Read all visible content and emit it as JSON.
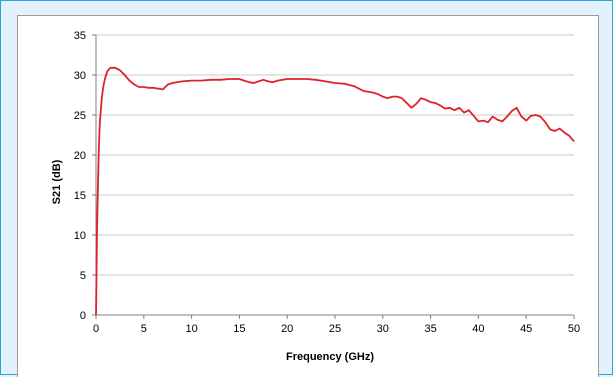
{
  "chart_data": {
    "type": "line",
    "title": "",
    "xlabel": "Frequency (GHz)",
    "ylabel": "S21 (dB)",
    "xlim": [
      0,
      50
    ],
    "ylim": [
      0,
      35
    ],
    "x_ticks": [
      0,
      5,
      10,
      15,
      20,
      25,
      30,
      35,
      40,
      45,
      50
    ],
    "y_ticks": [
      0,
      5,
      10,
      15,
      20,
      25,
      30,
      35
    ],
    "grid": "horizontal",
    "legend": "none",
    "series": [
      {
        "color": "#e0202a",
        "x": [
          0,
          0.1,
          0.2,
          0.3,
          0.4,
          0.5,
          0.6,
          0.7,
          0.8,
          1.0,
          1.2,
          1.5,
          2.0,
          2.5,
          3.0,
          3.5,
          4.0,
          4.5,
          5.0,
          5.5,
          6.0,
          6.5,
          7.0,
          7.5,
          8.0,
          9.0,
          10.0,
          11.0,
          12.0,
          13.0,
          14.0,
          15.0,
          15.5,
          16.0,
          16.5,
          17.0,
          17.5,
          18.0,
          18.5,
          19.0,
          20.0,
          21.0,
          22.0,
          23.0,
          24.0,
          25.0,
          26.0,
          27.0,
          28.0,
          29.0,
          29.5,
          30.0,
          30.5,
          31.0,
          31.5,
          32.0,
          32.5,
          33.0,
          33.5,
          34.0,
          34.5,
          35.0,
          35.5,
          36.0,
          36.5,
          37.0,
          37.5,
          38.0,
          38.5,
          39.0,
          39.5,
          40.0,
          40.5,
          41.0,
          41.5,
          42.0,
          42.5,
          43.0,
          43.5,
          44.0,
          44.5,
          45.0,
          45.5,
          46.0,
          46.5,
          47.0,
          47.5,
          48.0,
          48.5,
          49.0,
          49.5,
          50.0
        ],
        "values": [
          0,
          10,
          16,
          21,
          24,
          25.5,
          27,
          28,
          28.8,
          29.8,
          30.5,
          30.9,
          30.9,
          30.6,
          30.0,
          29.3,
          28.8,
          28.5,
          28.5,
          28.4,
          28.4,
          28.3,
          28.2,
          28.8,
          29.0,
          29.2,
          29.3,
          29.3,
          29.4,
          29.4,
          29.5,
          29.5,
          29.3,
          29.1,
          29.0,
          29.2,
          29.4,
          29.2,
          29.1,
          29.3,
          29.5,
          29.5,
          29.5,
          29.4,
          29.2,
          29.0,
          28.9,
          28.6,
          28.0,
          27.8,
          27.6,
          27.3,
          27.1,
          27.3,
          27.3,
          27.1,
          26.5,
          25.9,
          26.4,
          27.1,
          26.9,
          26.6,
          26.5,
          26.2,
          25.8,
          25.9,
          25.6,
          25.9,
          25.3,
          25.6,
          24.9,
          24.2,
          24.3,
          24.1,
          24.8,
          24.4,
          24.2,
          24.8,
          25.5,
          25.9,
          24.8,
          24.3,
          24.9,
          25.0,
          24.8,
          24.1,
          23.2,
          23.0,
          23.3,
          22.8,
          22.4,
          21.7
        ]
      }
    ]
  }
}
